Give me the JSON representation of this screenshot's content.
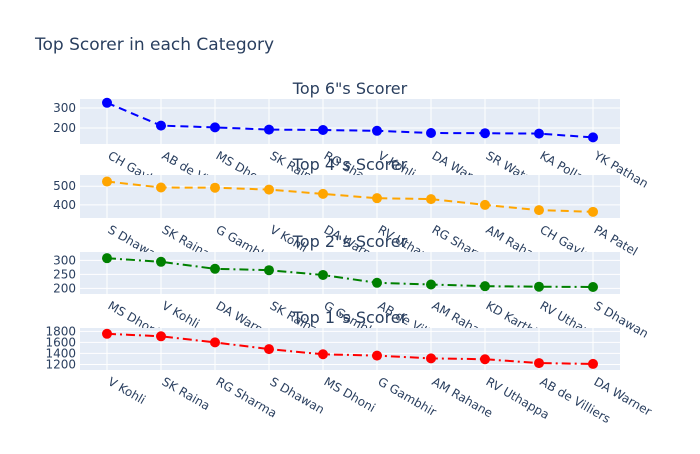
{
  "title": "Top Scorer in each Category",
  "chart_data": [
    {
      "type": "line",
      "title": "Top 6\"s Scorer",
      "categories": [
        "CH Gayle",
        "AB de Villiers",
        "MS Dhoni",
        "SK Raina",
        "RG Sharma",
        "V Kohli",
        "DA Warner",
        "SR Watson",
        "KA Pollard",
        "YK Pathan"
      ],
      "values": [
        326,
        212,
        203,
        192,
        190,
        186,
        175,
        174,
        172,
        153
      ],
      "yticks": [
        200,
        300
      ],
      "ylim": [
        120,
        345
      ],
      "color": "#0000ff",
      "dash": "dash",
      "grid": true
    },
    {
      "type": "line",
      "title": "Top 4\"s Scorer",
      "categories": [
        "S Dhawan",
        "SK Raina",
        "G Gambhir",
        "V Kohli",
        "DA Warner",
        "RV Uthappa",
        "RG Sharma",
        "AM Rahane",
        "CH Gayle",
        "PA Patel"
      ],
      "values": [
        525,
        493,
        492,
        482,
        459,
        436,
        431,
        400,
        372,
        363
      ],
      "yticks": [
        400,
        500
      ],
      "ylim": [
        330,
        560
      ],
      "color": "#ffa500",
      "dash": "dash",
      "grid": true
    },
    {
      "type": "line",
      "title": "Top 2\"s Scorer",
      "categories": [
        "MS Dhoni",
        "V Kohli",
        "DA Warner",
        "SK Raina",
        "G Gambhir",
        "AB de Villiers",
        "AM Rahane",
        "KD Karthik",
        "RV Uthappa",
        "S Dhawan"
      ],
      "values": [
        308,
        295,
        270,
        265,
        248,
        220,
        214,
        208,
        206,
        205
      ],
      "yticks": [
        200,
        250,
        300
      ],
      "ylim": [
        180,
        330
      ],
      "color": "#008000",
      "dash": "dashdot",
      "grid": true
    },
    {
      "type": "line",
      "title": "Top 1\"s Scorer",
      "categories": [
        "V Kohli",
        "SK Raina",
        "RG Sharma",
        "S Dhawan",
        "MS Dhoni",
        "G Gambhir",
        "AM Rahane",
        "RV Uthappa",
        "AB de Villiers",
        "DA Warner"
      ],
      "values": [
        1755,
        1710,
        1600,
        1478,
        1385,
        1360,
        1310,
        1295,
        1225,
        1210
      ],
      "yticks": [
        1200,
        1400,
        1600,
        1800
      ],
      "ylim": [
        1100,
        1860
      ],
      "color": "#ff0000",
      "dash": "dashdot",
      "grid": true
    }
  ]
}
